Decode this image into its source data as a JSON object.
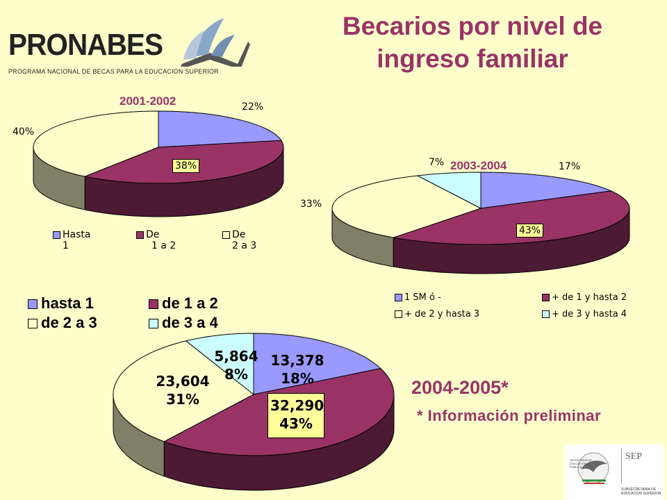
{
  "header": {
    "title_line1": "Becarios por nivel de",
    "title_line2": "ingreso familiar",
    "logo_text": "PRONABES",
    "logo_subtitle": "PROGRAMA NACIONAL DE BECAS PARA LA EDUCACIÓN SUPERIOR"
  },
  "seal": {
    "left_text": "SECRETARÍA DE EDUCACIÓN PÚBLICA",
    "abbr": "SEP",
    "bottom_text": "SUBSECRETARIA DE EDUCACION SUPERIOR"
  },
  "colors": {
    "purple": "#9999ff",
    "maroon": "#993366",
    "cream": "#ffffcc",
    "cyan": "#ccffff",
    "title": "#993366",
    "background": "#ffffcc"
  },
  "chart_data": [
    {
      "type": "pie",
      "title": "2001-2002",
      "categories": [
        "Hasta 1",
        "De 1 a 2",
        "De 2 a 3"
      ],
      "values": [
        22,
        38,
        40
      ],
      "labels": [
        "22%",
        "38%",
        "40%"
      ],
      "legend": [
        {
          "line1": "Hasta",
          "line2": "1"
        },
        {
          "line1": "De",
          "line2": "1 a 2"
        },
        {
          "line1": "De",
          "line2": "2 a 3"
        }
      ],
      "legend_position": "bottom"
    },
    {
      "type": "pie",
      "title": "2003-2004",
      "categories": [
        "1 SM ó -",
        "+ de 1 y hasta 2",
        "+ de 2 y hasta 3",
        "+ de 3 y hasta 4"
      ],
      "values": [
        17,
        43,
        33,
        7
      ],
      "labels": [
        "17%",
        "43%",
        "33%",
        "7%"
      ],
      "legend_position": "bottom"
    },
    {
      "type": "pie",
      "title": "2004-2005*",
      "note": "* Información preliminar",
      "categories": [
        "hasta 1",
        "de 1 a 2",
        "de 2 a 3",
        "de 3 a 4"
      ],
      "values": [
        13378,
        32290,
        23604,
        5864
      ],
      "percents": [
        18,
        43,
        31,
        8
      ],
      "value_labels": [
        "13,378",
        "32,290",
        "23,604",
        "5,864"
      ],
      "percent_labels": [
        "18%",
        "43%",
        "31%",
        "8%"
      ],
      "legend_position": "top-left"
    }
  ]
}
